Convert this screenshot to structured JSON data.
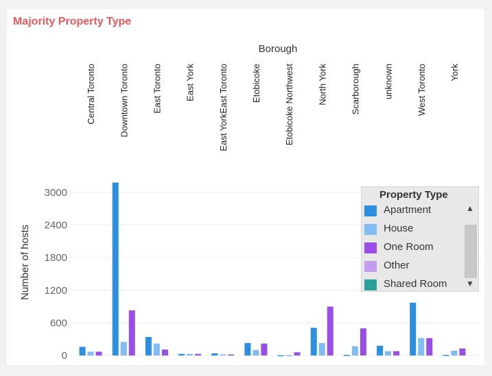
{
  "title": "Majority Property Type",
  "colors": {
    "title": "#e8595c",
    "grid": "#eeeeee"
  },
  "chart_data": {
    "type": "bar",
    "title": "Majority Property Type",
    "xlabel": "Borough",
    "ylabel": "Number of hosts",
    "ylim": [
      -150,
      3350
    ],
    "yticks": [
      0,
      600,
      1200,
      1800,
      2400,
      3000
    ],
    "legend_title": "Property Type",
    "legend_position": "right",
    "categories": [
      "Central Toronto",
      "Downtown Toronto",
      "East Toronto",
      "East York",
      "East YorkEast Toronto",
      "Etobicoke",
      "Etobicoke Northwest",
      "North York",
      "Scarborough",
      "unknown",
      "West Toronto",
      "York"
    ],
    "series": [
      {
        "name": "Apartment",
        "color": "#2c8fe0",
        "values": [
          160,
          3180,
          340,
          30,
          40,
          230,
          5,
          510,
          10,
          180,
          970,
          10
        ]
      },
      {
        "name": "House",
        "color": "#7fbdf4",
        "values": [
          70,
          250,
          220,
          30,
          20,
          100,
          5,
          230,
          170,
          80,
          320,
          90
        ]
      },
      {
        "name": "One Room",
        "color": "#9a4ee8",
        "values": [
          70,
          830,
          110,
          30,
          20,
          220,
          60,
          900,
          500,
          80,
          320,
          130
        ]
      },
      {
        "name": "Other",
        "color": "#c29ef0",
        "values": [
          0,
          0,
          0,
          0,
          0,
          0,
          0,
          0,
          0,
          0,
          0,
          0
        ]
      },
      {
        "name": "Shared Room",
        "color": "#2aa198",
        "values": [
          0,
          0,
          0,
          0,
          0,
          0,
          0,
          0,
          0,
          0,
          0,
          0
        ]
      }
    ]
  }
}
